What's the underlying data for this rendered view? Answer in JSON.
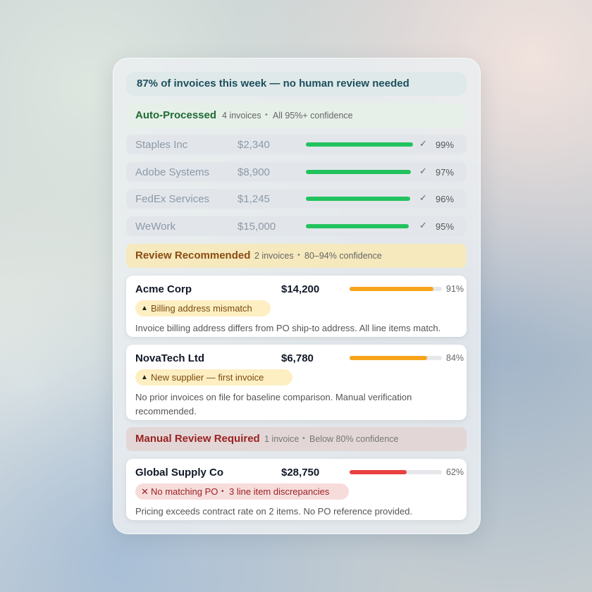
{
  "header": {
    "title": "87% of invoices this week — no human review needed"
  },
  "auto": {
    "title": "Auto-Processed",
    "count": "4 invoices",
    "note": "All 95%+ confidence",
    "rows": [
      {
        "name": "Staples Inc",
        "amount": "$2,340",
        "confidence": 99,
        "confidence_label": "99%"
      },
      {
        "name": "Adobe Systems",
        "amount": "$8,900",
        "confidence": 97,
        "confidence_label": "97%"
      },
      {
        "name": "FedEx Services",
        "amount": "$1,245",
        "confidence": 96,
        "confidence_label": "96%"
      },
      {
        "name": "WeWork",
        "amount": "$15,000",
        "confidence": 95,
        "confidence_label": "95%"
      }
    ]
  },
  "review": {
    "title": "Review Recommended",
    "count": "2 invoices",
    "note": "80–94% confidence",
    "rows": [
      {
        "name": "Acme Corp",
        "amount": "$14,200",
        "confidence": 91,
        "confidence_label": "91%",
        "flags": [
          "Billing address mismatch"
        ],
        "description": "Invoice billing address differs from PO ship-to address. All line items match."
      },
      {
        "name": "NovaTech Ltd",
        "amount": "$6,780",
        "confidence": 84,
        "confidence_label": "84%",
        "flags": [
          "New supplier — first invoice"
        ],
        "description": "No prior invoices on file for baseline comparison. Manual verification recommended."
      }
    ]
  },
  "manual": {
    "title": "Manual Review Required",
    "count": "1 invoice",
    "note": "Below 80% confidence",
    "rows": [
      {
        "name": "Global Supply Co",
        "amount": "$28,750",
        "confidence": 62,
        "confidence_label": "62%",
        "flags": [
          "No matching PO",
          "3 line item discrepancies"
        ],
        "description": "Pricing exceeds contract rate on 2 items. No PO reference provided."
      }
    ]
  }
}
